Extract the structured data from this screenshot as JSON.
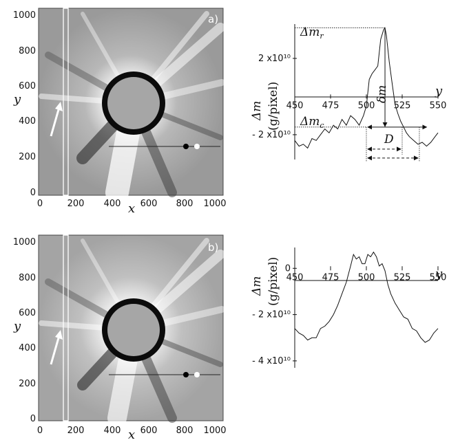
{
  "panels": [
    {
      "tag": "a)",
      "image": {
        "x_axis_letter": "x",
        "y_axis_letter": "y",
        "x_ticks": [
          "0",
          "200",
          "400",
          "600",
          "800",
          "1000"
        ],
        "y_ticks": [
          "1000",
          "800",
          "600",
          "400",
          "200",
          "0"
        ]
      },
      "profile": {
        "ylabel": "Δm",
        "yunit": "(g/pixel)",
        "x_axis_letter": "y",
        "x_ticks": [
          "450",
          "475",
          "500",
          "525",
          "550"
        ],
        "y_ticks": [
          "2 x10¹⁰",
          "- 2 x10¹⁰"
        ],
        "annotations": {
          "dm_r": "Δm",
          "dm_r_sub": "r",
          "dm_c": "Δm",
          "dm_c_sub": "c",
          "delta_m": "δm",
          "D": "D"
        }
      }
    },
    {
      "tag": "b)",
      "image": {
        "x_axis_letter": "x",
        "y_axis_letter": "y",
        "x_ticks": [
          "0",
          "200",
          "400",
          "600",
          "800",
          "1000"
        ],
        "y_ticks": [
          "1000",
          "800",
          "600",
          "400",
          "200",
          "0"
        ]
      },
      "profile": {
        "ylabel": "Δm",
        "yunit": "(g/pixel)",
        "x_axis_letter": "y",
        "x_ticks": [
          "450",
          "475",
          "500",
          "525",
          "550"
        ],
        "y_ticks": [
          "0",
          "- 2 x10¹⁰",
          "- 4 x10¹⁰"
        ]
      }
    }
  ],
  "chart_data": [
    {
      "type": "line",
      "title": "",
      "xlabel": "y",
      "ylabel": "Δm (g/pixel)",
      "xlim": [
        450,
        550
      ],
      "ylim": [
        -33000000000.0,
        38000000000.0
      ],
      "x": [
        450,
        453,
        456,
        459,
        462,
        465,
        468,
        471,
        474,
        477,
        480,
        483,
        486,
        489,
        492,
        495,
        498,
        500,
        502,
        504,
        506,
        508,
        510,
        512,
        513,
        514,
        516,
        518,
        520,
        522,
        524,
        526,
        528,
        530,
        533,
        536,
        539,
        542,
        545,
        548,
        550
      ],
      "series": [
        {
          "values": [
            -23000000000.0,
            -26000000000.0,
            -25000000000.0,
            -27000000000.0,
            -22000000000.0,
            -23000000000.0,
            -20000000000.0,
            -17000000000.0,
            -19000000000.0,
            -15000000000.0,
            -17000000000.0,
            -12000000000.0,
            -15000000000.0,
            -10000000000.0,
            -12000000000.0,
            -15000000000.0,
            -10000000000.0,
            -5000000000.0,
            9000000000.0,
            12000000000.0,
            14000000000.0,
            16000000000.0,
            30000000000.0,
            35000000000.0,
            36000000000.0,
            32000000000.0,
            18000000000.0,
            7000000000.0,
            -4000000000.0,
            -9000000000.0,
            -13000000000.0,
            -16000000000.0,
            -19000000000.0,
            -21000000000.0,
            -23000000000.0,
            -25000000000.0,
            -24000000000.0,
            -26000000000.0,
            -24000000000.0,
            -21000000000.0,
            -19000000000.0
          ]
        }
      ],
      "reference_lines": {
        "dm_r_level": 36000000000.0,
        "dm_c_level": -16000000000.0,
        "zero_level": 0
      }
    },
    {
      "type": "line",
      "title": "",
      "xlabel": "y",
      "ylabel": "Δm (g/pixel)",
      "xlim": [
        450,
        550
      ],
      "ylim": [
        -43000000000.0,
        9000000000.0
      ],
      "x": [
        450,
        453,
        456,
        459,
        462,
        465,
        468,
        471,
        474,
        477,
        480,
        483,
        486,
        489,
        491,
        493,
        495,
        497,
        499,
        501,
        503,
        505,
        507,
        509,
        511,
        513,
        515,
        517,
        520,
        523,
        526,
        529,
        532,
        535,
        538,
        541,
        544,
        547,
        550
      ],
      "series": [
        {
          "values": [
            -26000000000.0,
            -28000000000.0,
            -29000000000.0,
            -31000000000.0,
            -30000000000.0,
            -30000000000.0,
            -26000000000.0,
            -25000000000.0,
            -23000000000.0,
            -20000000000.0,
            -16000000000.0,
            -11000000000.0,
            -6000000000.0,
            1000000000.0,
            6000000000.0,
            4000000000.0,
            5000000000.0,
            2000000000.0,
            2000000000.0,
            6000000000.0,
            5000000000.0,
            7000000000.0,
            5000000000.0,
            1000000000.0,
            2000000000.0,
            -1000000000.0,
            -7000000000.0,
            -11000000000.0,
            -15000000000.0,
            -18000000000.0,
            -21000000000.0,
            -22000000000.0,
            -26000000000.0,
            -27000000000.0,
            -30000000000.0,
            -32000000000.0,
            -31000000000.0,
            -28000000000.0,
            -26000000000.0
          ]
        }
      ]
    }
  ]
}
